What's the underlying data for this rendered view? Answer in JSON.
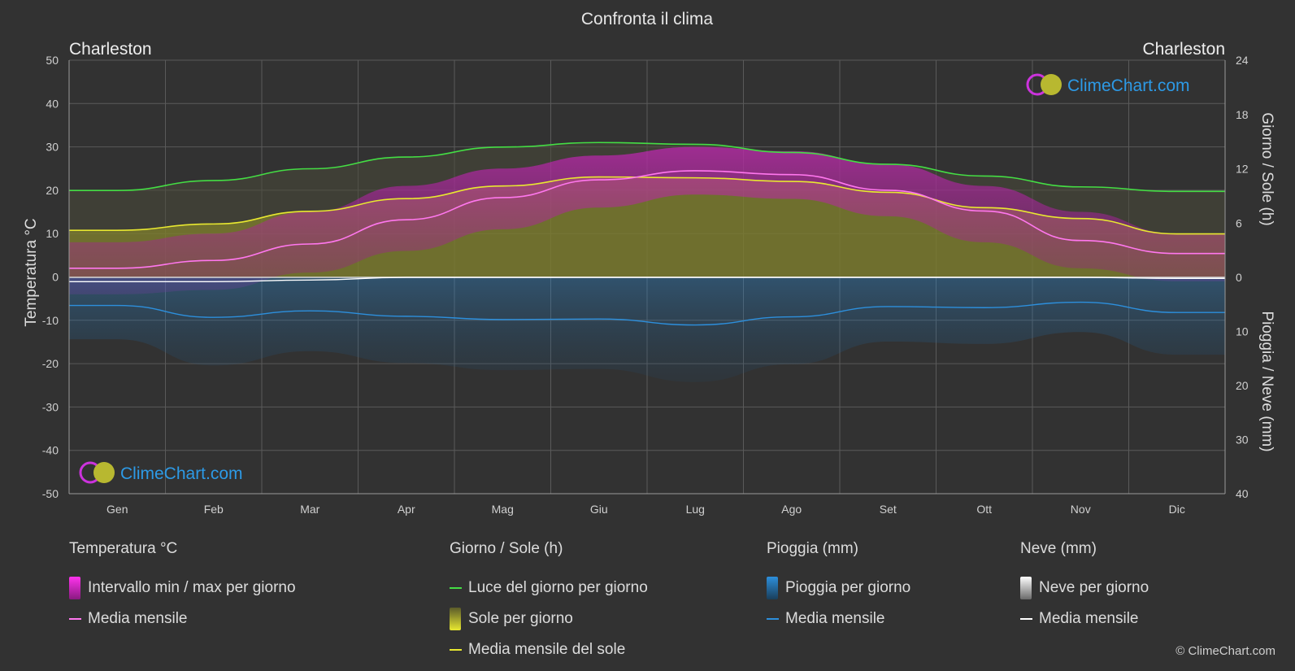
{
  "title": "Confronta il clima",
  "location_left": "Charleston",
  "location_right": "Charleston",
  "left_axis_label": "Temperatura °C",
  "right_axis_label_top": "Giorno / Sole (h)",
  "right_axis_label_bottom": "Pioggia / Neve (mm)",
  "watermark": "ClimeChart.com",
  "copyright": "© ClimeChart.com",
  "legend": {
    "temperature": {
      "title": "Temperatura °C",
      "range_label": "Intervallo min / max per giorno",
      "mean_label": "Media mensile"
    },
    "sun": {
      "title": "Giorno / Sole (h)",
      "daylight_label": "Luce del giorno per giorno",
      "sun_label": "Sole per giorno",
      "sun_mean_label": "Media mensile del sole"
    },
    "rain": {
      "title": "Pioggia (mm)",
      "rain_label": "Pioggia per giorno",
      "mean_label": "Media mensile"
    },
    "snow": {
      "title": "Neve (mm)",
      "snow_label": "Neve per giorno",
      "mean_label": "Media mensile"
    }
  },
  "colors": {
    "background": "#323232",
    "daylight": "#44dd44",
    "sun_mean": "#e8e830",
    "sun_fill": "#8f8f2a",
    "temp_mean": "#ff77ee",
    "temp_range": "#c020b0",
    "rain": "#2d8fdc",
    "rain_mean": "#2d8fdc",
    "snow_mean": "#ffffff",
    "grid": "#5a5a5a"
  },
  "chart_data": {
    "type": "area",
    "categories": [
      "Gen",
      "Feb",
      "Mar",
      "Apr",
      "Mag",
      "Giu",
      "Lug",
      "Ago",
      "Set",
      "Ott",
      "Nov",
      "Dic"
    ],
    "left_axis": {
      "min": -50,
      "max": 50,
      "ticks": [
        50,
        40,
        30,
        20,
        10,
        0,
        -10,
        -20,
        -30,
        -40,
        -50
      ]
    },
    "right_axis_top": {
      "min": 0,
      "max": 24,
      "ticks": [
        24,
        18,
        12,
        6,
        0
      ]
    },
    "right_axis_bottom": {
      "min": 0,
      "max": 40,
      "ticks": [
        10,
        20,
        30,
        40
      ]
    },
    "grid": true,
    "series": [
      {
        "name": "Luce del giorno per giorno",
        "unit": "h",
        "values": [
          9.6,
          10.7,
          12.0,
          13.3,
          14.4,
          14.9,
          14.7,
          13.8,
          12.5,
          11.2,
          10.0,
          9.5
        ]
      },
      {
        "name": "Media mensile del sole",
        "unit": "h",
        "values": [
          5.2,
          5.9,
          7.3,
          8.7,
          10.1,
          11.1,
          11.0,
          10.6,
          9.4,
          7.7,
          6.5,
          4.8
        ]
      },
      {
        "name": "Temperatura media mensile",
        "unit": "°C",
        "values": [
          2.0,
          3.8,
          7.6,
          13.2,
          18.3,
          22.4,
          24.5,
          23.6,
          20.0,
          15.2,
          8.4,
          5.4
        ]
      },
      {
        "name": "Temperatura max giornaliera",
        "unit": "°C",
        "values": [
          8,
          10,
          15,
          21,
          25,
          28,
          30,
          29,
          26,
          21,
          15,
          10
        ]
      },
      {
        "name": "Temperatura min giornaliera",
        "unit": "°C",
        "values": [
          -4,
          -3,
          1,
          6,
          11,
          16,
          19,
          18,
          14,
          8,
          2,
          -1
        ]
      },
      {
        "name": "Pioggia media mensile",
        "unit": "mm",
        "values": [
          5.2,
          7.4,
          6.2,
          7.2,
          7.8,
          7.7,
          8.8,
          7.3,
          5.4,
          5.6,
          4.6,
          6.5
        ]
      },
      {
        "name": "Neve media mensile",
        "unit": "mm",
        "values": [
          0.8,
          0.8,
          0.5,
          0.0,
          0.0,
          0.0,
          0.0,
          0.0,
          0.0,
          0.0,
          0.0,
          0.2
        ]
      }
    ]
  }
}
